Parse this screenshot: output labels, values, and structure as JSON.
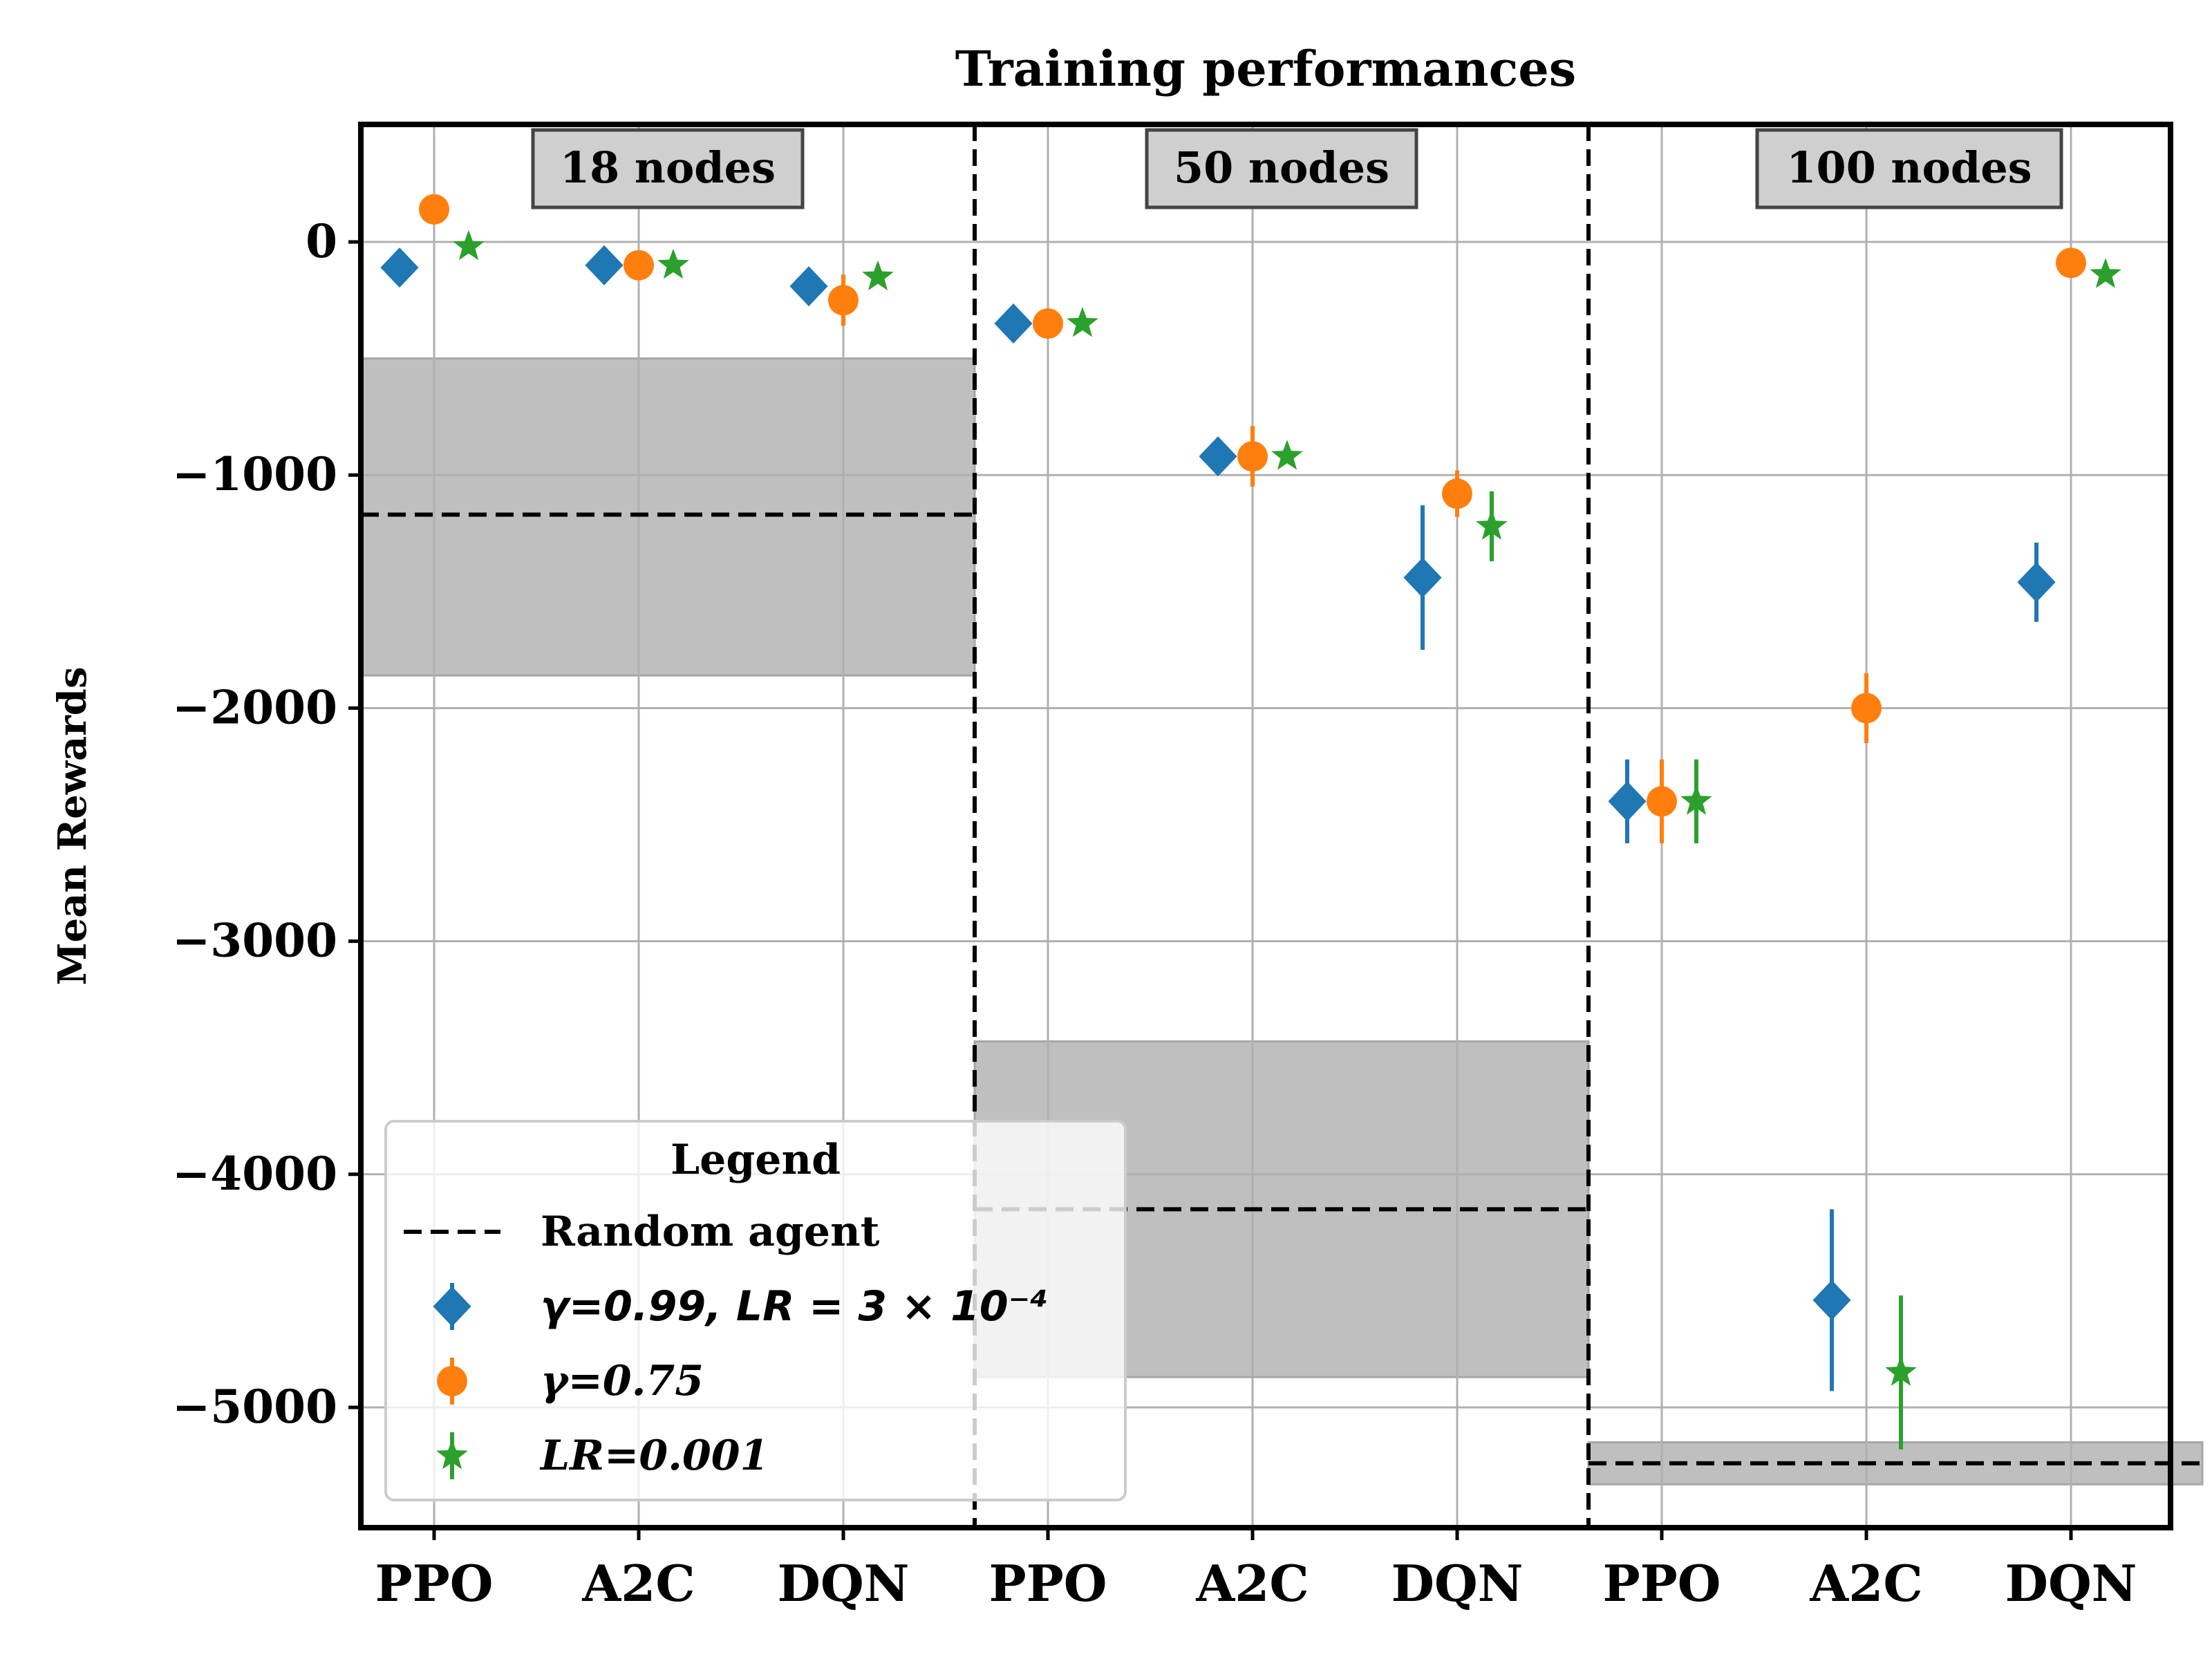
{
  "chart_data": {
    "type": "scatter",
    "title": "Training performances",
    "ylabel": "Mean Rewards",
    "xlabel": "",
    "ylim": [
      -5500,
      500
    ],
    "yticks": [
      0,
      -1000,
      -2000,
      -3000,
      -4000,
      -5000
    ],
    "ytick_labels": [
      "0",
      "−1000",
      "−2000",
      "−3000",
      "−4000",
      "−5000"
    ],
    "grid": true,
    "categories": [
      "PPO",
      "A2C",
      "DQN",
      "PPO",
      "A2C",
      "DQN",
      "PPO",
      "A2C",
      "DQN"
    ],
    "groups": [
      {
        "label": "18 nodes",
        "random_mean": -1170,
        "random_low": -1860,
        "random_high": -500
      },
      {
        "label": "50 nodes",
        "random_mean": -4150,
        "random_low": -4870,
        "random_high": -3430
      },
      {
        "label": "100 nodes",
        "random_mean": -5240,
        "random_low": -5330,
        "random_high": -5150
      }
    ],
    "series": [
      {
        "name": "γ=0.99, LR = 3 × 10⁻⁴",
        "color": "#1f77b4",
        "marker": "diamond",
        "values": [
          -110,
          -100,
          -190,
          -350,
          -920,
          -1440,
          -2400,
          -4540,
          -1460
        ],
        "errors": [
          0,
          0,
          0,
          0,
          0,
          310,
          180,
          390,
          170
        ]
      },
      {
        "name": "γ=0.75",
        "color": "#ff7f0e",
        "marker": "circle",
        "values": [
          140,
          -100,
          -250,
          -350,
          -920,
          -1080,
          -2400,
          -2000,
          -90
        ],
        "errors": [
          0,
          0,
          110,
          0,
          130,
          100,
          180,
          150,
          0
        ]
      },
      {
        "name": "LR=0.001",
        "color": "#2ca02c",
        "marker": "star",
        "values": [
          -20,
          -100,
          -150,
          -350,
          -920,
          -1220,
          -2400,
          -4850,
          -140
        ],
        "errors": [
          0,
          0,
          0,
          0,
          0,
          150,
          180,
          330,
          0
        ]
      }
    ],
    "legend": {
      "title": "Legend",
      "random_label": "Random agent",
      "placement": "lower-left"
    }
  }
}
